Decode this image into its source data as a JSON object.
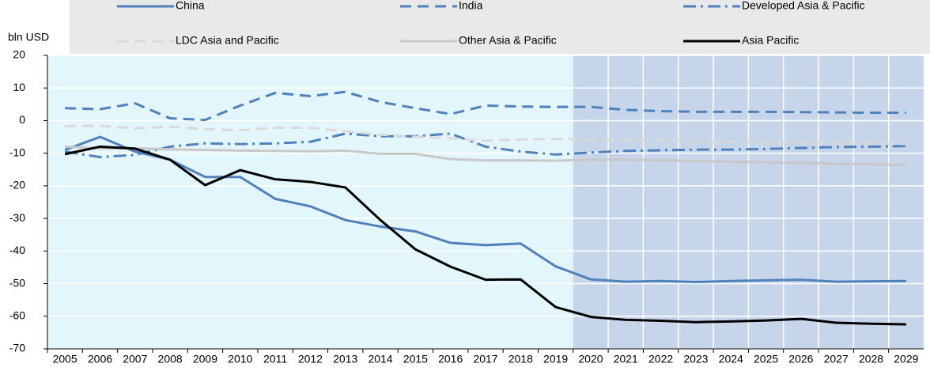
{
  "chart_data": {
    "type": "line",
    "y_label": "bln USD",
    "categories": [
      "2005",
      "2006",
      "2007",
      "2008",
      "2009",
      "2010",
      "2011",
      "2012",
      "2013",
      "2014",
      "2015",
      "2016",
      "2017",
      "2018",
      "2019",
      "2020",
      "2021",
      "2022",
      "2023",
      "2024",
      "2025",
      "2026",
      "2027",
      "2028",
      "2029"
    ],
    "projection_start": "2020",
    "ylim": [
      -70,
      20
    ],
    "yticks": [
      -70,
      -60,
      -50,
      -40,
      -30,
      -20,
      -10,
      0,
      10,
      20
    ],
    "grid": true,
    "series": [
      {
        "name": "China",
        "color": "#4f81bd",
        "dash": "solid",
        "values": [
          -9,
          -5,
          -9.5,
          -12,
          -17.3,
          -17.3,
          -24,
          -26.3,
          -30.5,
          -32.5,
          -34,
          -37.5,
          -38.2,
          -37.7,
          -44.7,
          -48.7,
          -49.4,
          -49.2,
          -49.5,
          -49.2,
          -49,
          -48.8,
          -49.4,
          -49.3,
          -49.2
        ]
      },
      {
        "name": "India",
        "color": "#4f81bd",
        "dash": "dashed",
        "values": [
          3.8,
          3.5,
          5.3,
          0.7,
          0.2,
          4.6,
          8.5,
          7.5,
          8.8,
          5.7,
          3.8,
          2,
          4.6,
          4.3,
          4.2,
          4.2,
          3.3,
          2.9,
          2.7,
          2.7,
          2.7,
          2.6,
          2.5,
          2.4,
          2.4
        ]
      },
      {
        "name": "Developed Asia & Pacific",
        "color": "#4f81bd",
        "dash": "dashdot",
        "values": [
          -9.5,
          -11.2,
          -10.5,
          -8,
          -7,
          -7.2,
          -7,
          -6.5,
          -4,
          -4.8,
          -4.8,
          -4,
          -8,
          -9.5,
          -10.4,
          -9.8,
          -9.3,
          -9.1,
          -8.9,
          -8.9,
          -8.7,
          -8.4,
          -8.1,
          -8,
          -7.8
        ]
      },
      {
        "name": "LDC Asia and Pacific",
        "color": "#d9d9d9",
        "dash": "dashed",
        "values": [
          -1.7,
          -1.6,
          -2.4,
          -1.9,
          -2.6,
          -3,
          -2.2,
          -2.2,
          -3.3,
          -4.3,
          -5,
          -5.4,
          -6.2,
          -5.8,
          -5.6,
          -5.7,
          -6,
          -6.2,
          -6.3,
          -6.5,
          -6.6,
          -6.8,
          -6.9,
          -7,
          -7.2
        ]
      },
      {
        "name": "Other Asia & Pacific",
        "color": "#c8c8c8",
        "dash": "solid",
        "values": [
          -8,
          -8.5,
          -8.5,
          -8.8,
          -9,
          -9.2,
          -9.3,
          -9.4,
          -9.2,
          -10.2,
          -10.2,
          -11.8,
          -12.2,
          -12.2,
          -12.3,
          -12,
          -12,
          -12.2,
          -12.4,
          -12.6,
          -12.8,
          -13,
          -13.2,
          -13.4,
          -13.6
        ]
      },
      {
        "name": "Asia Pacific",
        "color": "#000000",
        "dash": "solid",
        "values": [
          -10.3,
          -8,
          -8.6,
          -12,
          -19.8,
          -15.2,
          -18,
          -18.8,
          -20.5,
          -30.5,
          -39.5,
          -44.8,
          -48.8,
          -48.7,
          -57.2,
          -60.2,
          -61.1,
          -61.4,
          -61.8,
          -61.6,
          -61.3,
          -60.8,
          -62,
          -62.3,
          -62.5
        ]
      }
    ]
  }
}
